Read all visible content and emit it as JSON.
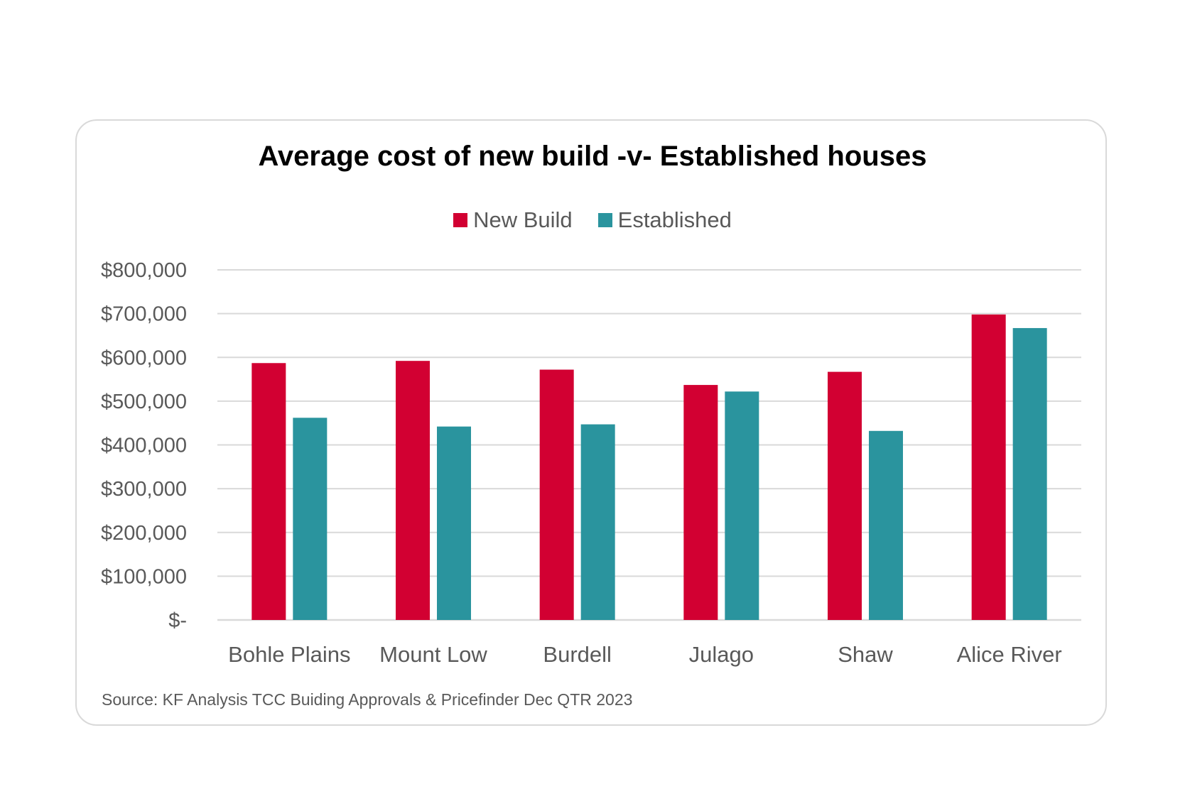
{
  "chart_data": {
    "type": "bar",
    "title": "Average cost of new build -v- Established houses",
    "categories": [
      "Bohle Plains",
      "Mount Low",
      "Burdell",
      "Julago",
      "Shaw",
      "Alice River"
    ],
    "series": [
      {
        "name": "New Build",
        "color": "#d20032",
        "values": [
          587000,
          592000,
          572000,
          537000,
          567000,
          698000
        ]
      },
      {
        "name": "Established",
        "color": "#2a949e",
        "values": [
          462000,
          442000,
          447000,
          522000,
          432000,
          667000
        ]
      }
    ],
    "ylim": [
      0,
      800000
    ],
    "yticks": [
      0,
      100000,
      200000,
      300000,
      400000,
      500000,
      600000,
      700000,
      800000
    ],
    "ytick_labels": [
      "$-",
      "$100,000",
      "$200,000",
      "$300,000",
      "$400,000",
      "$500,000",
      "$600,000",
      "$700,000",
      "$800,000"
    ],
    "xlabel": "",
    "ylabel": "",
    "grid": true,
    "legend": "top-center",
    "source": "Source: KF Analysis TCC Buiding Approvals & Pricefinder Dec QTR 2023"
  }
}
